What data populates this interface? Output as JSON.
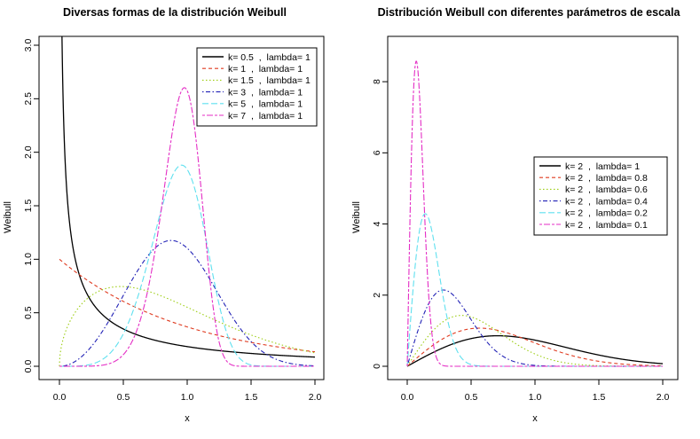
{
  "chart_data": [
    {
      "type": "line",
      "title": "Diversas formas de la distribución Weibull",
      "xlabel": "x",
      "ylabel": "Weibull",
      "xlim": [
        0,
        2
      ],
      "ylim": [
        0,
        3.0
      ],
      "x_ticks": [
        "0.0",
        "0.5",
        "1.0",
        "1.5",
        "2.0"
      ],
      "y_ticks": [
        "0.0",
        "0.5",
        "1.0",
        "1.5",
        "2.0",
        "2.5",
        "3.0"
      ],
      "legend_position": "top-right",
      "series": [
        {
          "name": "k= 0.5  ,  lambda= 1",
          "k": 0.5,
          "lambda": 1,
          "color": "#000000",
          "dash": "solid"
        },
        {
          "name": "k= 1  ,  lambda= 1",
          "k": 1,
          "lambda": 1,
          "color": "#df3a1f",
          "dash": "dashed"
        },
        {
          "name": "k= 1.5  ,  lambda= 1",
          "k": 1.5,
          "lambda": 1,
          "color": "#9ccd12",
          "dash": "dotted"
        },
        {
          "name": "k= 3  ,  lambda= 1",
          "k": 3,
          "lambda": 1,
          "color": "#2222b6",
          "dash": "dotdash"
        },
        {
          "name": "k= 5  ,  lambda= 1",
          "k": 5,
          "lambda": 1,
          "color": "#5fe0ef",
          "dash": "longdash"
        },
        {
          "name": "k= 7  ,  lambda= 1",
          "k": 7,
          "lambda": 1,
          "color": "#e42ec5",
          "dash": "twodash"
        }
      ]
    },
    {
      "type": "line",
      "title": "Distribución Weibull con diferentes parámetros de escala",
      "xlabel": "x",
      "ylabel": "Weibull",
      "xlim": [
        0,
        2
      ],
      "ylim": [
        0,
        9
      ],
      "x_ticks": [
        "0.0",
        "0.5",
        "1.0",
        "1.5",
        "2.0"
      ],
      "y_ticks": [
        "0",
        "2",
        "4",
        "6",
        "8"
      ],
      "legend_position": "center-right",
      "series": [
        {
          "name": "k= 2  ,  lambda= 1",
          "k": 2,
          "lambda": 1,
          "color": "#000000",
          "dash": "solid"
        },
        {
          "name": "k= 2  ,  lambda= 0.8",
          "k": 2,
          "lambda": 0.8,
          "color": "#df3a1f",
          "dash": "dashed"
        },
        {
          "name": "k= 2  ,  lambda= 0.6",
          "k": 2,
          "lambda": 0.6,
          "color": "#9ccd12",
          "dash": "dotted"
        },
        {
          "name": "k= 2  ,  lambda= 0.4",
          "k": 2,
          "lambda": 0.4,
          "color": "#2222b6",
          "dash": "dotdash"
        },
        {
          "name": "k= 2  ,  lambda= 0.2",
          "k": 2,
          "lambda": 0.2,
          "color": "#5fe0ef",
          "dash": "longdash"
        },
        {
          "name": "k= 2  ,  lambda= 0.1",
          "k": 2,
          "lambda": 0.1,
          "color": "#e42ec5",
          "dash": "twodash"
        }
      ]
    }
  ]
}
